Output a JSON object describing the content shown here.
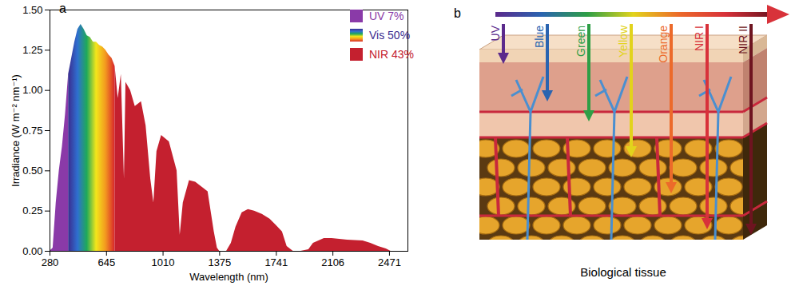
{
  "chart_data": {
    "type": "area",
    "panel_label": "a",
    "x_label": "Wavelength (nm)",
    "y_label": "Irradiance (W m⁻² nm⁻¹)",
    "xlim": [
      280,
      2590
    ],
    "xticks": [
      280,
      645,
      1010,
      1375,
      1741,
      2106,
      2471
    ],
    "ylim": [
      0,
      1.5
    ],
    "yticks": [
      {
        "value": 0,
        "label": "0.00"
      },
      {
        "value": 0.25,
        "label": "0.25"
      },
      {
        "value": 0.5,
        "label": "0.50"
      },
      {
        "value": 0.75,
        "label": "0.75"
      },
      {
        "value": 1,
        "label": "1.00"
      },
      {
        "value": 1.25,
        "label": "1.25"
      },
      {
        "value": 1.5,
        "label": "1.50"
      }
    ],
    "legend": "top-right",
    "series": [
      {
        "name": "UV 7%",
        "color": "#8a3aa8",
        "x": [
          280,
          300,
          320,
          340,
          360,
          380,
          400
        ],
        "values": [
          0,
          0.02,
          0.3,
          0.5,
          0.65,
          0.85,
          1.1
        ]
      },
      {
        "name": "Vis 50%",
        "colors": [
          "#3b2c8f",
          "#2f6fd0",
          "#1fa95a",
          "#f3e61b",
          "#f39a1f",
          "#d8262b"
        ],
        "x": [
          400,
          420,
          440,
          460,
          480,
          500,
          520,
          540,
          560,
          580,
          600,
          620,
          640,
          660,
          680,
          700
        ],
        "values": [
          1.1,
          1.2,
          1.3,
          1.38,
          1.41,
          1.38,
          1.34,
          1.33,
          1.3,
          1.3,
          1.28,
          1.27,
          1.25,
          1.22,
          1.2,
          1.15
        ]
      },
      {
        "name": "NIR 43%",
        "color": "#c4202f",
        "x": [
          700,
          720,
          740,
          760,
          770,
          800,
          830,
          870,
          900,
          930,
          950,
          970,
          1000,
          1050,
          1100,
          1120,
          1140,
          1180,
          1220,
          1260,
          1300,
          1340,
          1360,
          1375,
          1420,
          1450,
          1480,
          1520,
          1560,
          1600,
          1650,
          1700,
          1741,
          1780,
          1810,
          1850,
          1900,
          1950,
          1980,
          2050,
          2100,
          2150,
          2200,
          2300,
          2350,
          2400,
          2450,
          2480
        ],
        "values": [
          1.15,
          0.95,
          1.1,
          0.45,
          1.05,
          1.0,
          0.9,
          0.93,
          0.78,
          0.45,
          0.3,
          0.62,
          0.72,
          0.68,
          0.5,
          0.1,
          0.3,
          0.44,
          0.43,
          0.4,
          0.37,
          0.12,
          0.02,
          0,
          0,
          0.05,
          0.15,
          0.24,
          0.26,
          0.25,
          0.23,
          0.2,
          0.16,
          0.12,
          0.03,
          0,
          0,
          0.01,
          0.05,
          0.08,
          0.08,
          0.075,
          0.07,
          0.065,
          0.05,
          0.03,
          0.015,
          0
        ]
      }
    ]
  },
  "diagram": {
    "panel_label": "b",
    "caption": "Biological tissue",
    "arrows": [
      {
        "label": "UV",
        "color": "#5b2a8c"
      },
      {
        "label": "Blue",
        "color": "#2a64b0"
      },
      {
        "label": "Green",
        "color": "#2e9e46"
      },
      {
        "label": "Yellow",
        "color": "#e2d31c"
      },
      {
        "label": "Orange",
        "color": "#ec6a2a"
      },
      {
        "label": "NIR I",
        "color": "#d8323a"
      },
      {
        "label": "NIR II",
        "color": "#6e1420"
      }
    ]
  }
}
